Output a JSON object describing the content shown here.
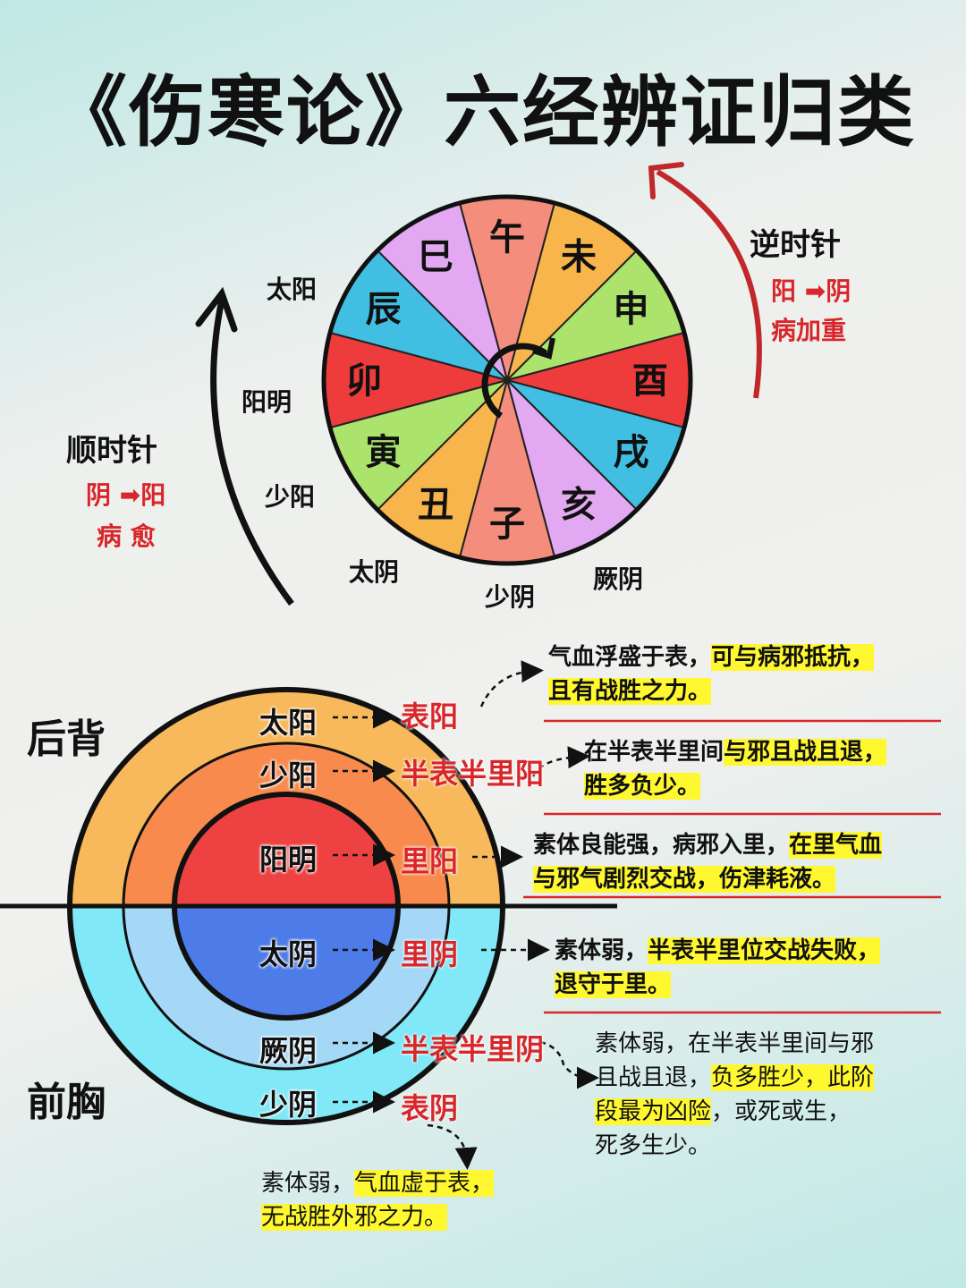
{
  "title": "《伤寒论》六经辨证归类",
  "wheel": {
    "branches": [
      "午",
      "未",
      "申",
      "酉",
      "戌",
      "亥",
      "子",
      "丑",
      "寅",
      "卯",
      "辰",
      "巳"
    ],
    "colors": [
      "#f58d7d",
      "#f7b54c",
      "#abe36c",
      "#ee3b3b",
      "#41bfe2",
      "#e2a8f2",
      "#f58d7d",
      "#f7b54c",
      "#abe36c",
      "#ee3b3b",
      "#41bfe2",
      "#e2a8f2"
    ],
    "meridians": {
      "taiyang": "太阳",
      "yangming": "阳明",
      "shaoyang": "少阳",
      "taiyin": "太阴",
      "shaoyin": "少阴",
      "jueyin": "厥阴"
    }
  },
  "clockwise": {
    "title": "顺时针",
    "direction": "阴 ➡阳",
    "result": "病 愈"
  },
  "counterclockwise": {
    "title": "逆时针",
    "direction": "阳 ➡阴",
    "result": "病加重"
  },
  "rings": {
    "back": "后背",
    "front": "前胸",
    "colors": {
      "outer_top": "#f8b85c",
      "mid_top": "#f78a4c",
      "inner_top": "#ee4242",
      "outer_bottom": "#80e8f6",
      "mid_bottom": "#a4d8f6",
      "inner_bottom": "#4d7ce8"
    },
    "rows": [
      {
        "name": "太阳",
        "stage": "表阳"
      },
      {
        "name": "少阳",
        "stage": "半表半里阳"
      },
      {
        "name": "阳明",
        "stage": "里阳"
      },
      {
        "name": "太阴",
        "stage": "里阴"
      },
      {
        "name": "厥阴",
        "stage": "半表半里阴"
      },
      {
        "name": "少阴",
        "stage": "表阴"
      }
    ]
  },
  "notes": {
    "n1": {
      "a": "气血浮盛于表，",
      "b": "可与病邪抵抗，",
      "c": "且有战胜之力。"
    },
    "n2": {
      "a": "在半表半里间",
      "b": "与邪且战且退，",
      "c": "胜多负少。"
    },
    "n3": {
      "a": "素体良能强，病邪入里，",
      "b": "在里气血",
      "c": "与邪气剧烈交战，伤津耗液。"
    },
    "n4": {
      "a": "素体弱，",
      "b": "半表半里位交战失败，",
      "c": "退守于里。"
    },
    "n5": {
      "a": "素体弱，在半表半里间与邪",
      "b": "且战且退，",
      "c": "负多胜少，此阶",
      "d": "段最为凶险",
      "e": "，或死或生，",
      "f": "死多生少。"
    },
    "n6": {
      "a": "素体弱，",
      "b": "气血虚于表，",
      "c": "无战胜外邪之力。"
    }
  }
}
